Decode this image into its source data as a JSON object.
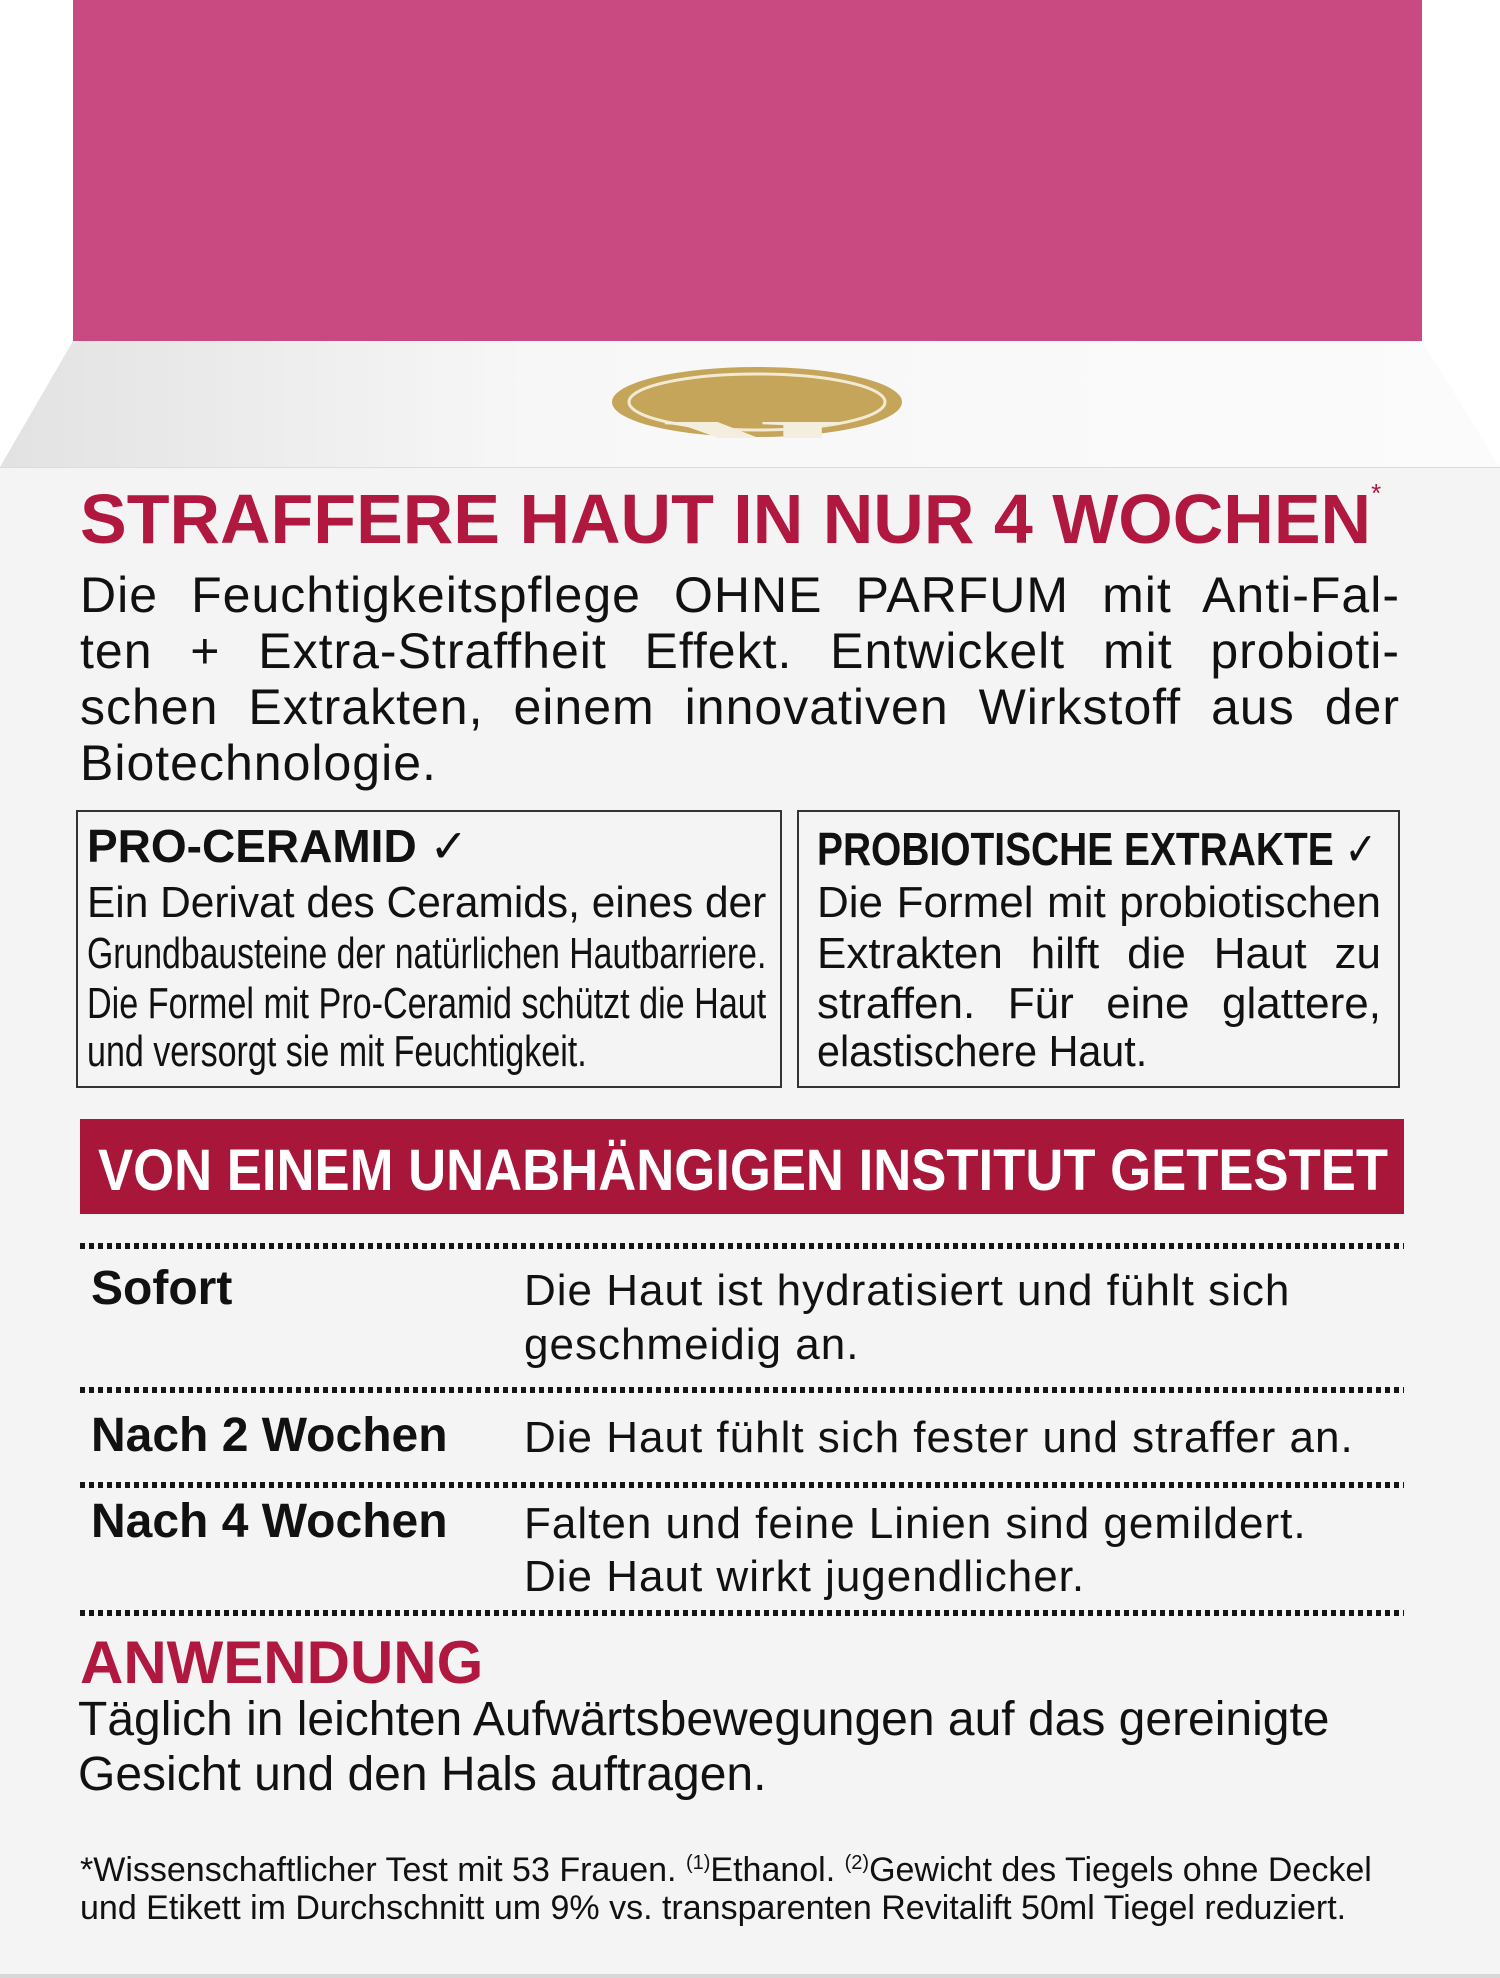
{
  "colors": {
    "top_band": "#c94a81",
    "accent_red": "#b0183f",
    "banner": "#a8173a",
    "logo_gold": "#c4a55a",
    "panel": "#f4f4f4"
  },
  "logo": {
    "letter": "R",
    "icon": "brand-seal-logo"
  },
  "headline": {
    "text": "STRAFFERE HAUT IN NUR 4 WOCHEN",
    "mark": "*"
  },
  "intro_lines": [
    "Die Feuchtigkeitspflege OHNE PARFUM mit Anti-Fal-",
    "ten + Extra-Straffheit Effekt. Entwickelt mit probioti-",
    "schen Extrakten, einem innovativen Wirkstoff aus der",
    "Biotechnologie."
  ],
  "features": [
    {
      "title": "PRO-CERAMID",
      "check": "✓",
      "lines": [
        "Ein Derivat des Ceramids, eines der",
        "Grundbausteine der natürlichen Hautbarriere.",
        "Die Formel mit Pro-Ceramid schützt die Haut",
        "und versorgt sie mit Feuchtigkeit."
      ]
    },
    {
      "title": "PROBIOTISCHE EXTRAKTE",
      "check": "✓",
      "lines": [
        "Die Formel mit probiotischen",
        "Extrakten hilft die Haut zu",
        "straffen. Für eine glattere,",
        "elastischere Haut."
      ]
    }
  ],
  "banner": "VON EINEM UNABHÄNGIGEN INSTITUT GETESTET",
  "results": [
    {
      "label": "Sofort",
      "lines": [
        "Die Haut ist hydratisiert und fühlt sich",
        "geschmeidig an."
      ]
    },
    {
      "label": "Nach 2 Wochen",
      "lines": [
        "Die Haut fühlt sich fester und straffer an."
      ]
    },
    {
      "label": "Nach 4 Wochen",
      "lines": [
        "Falten und feine Linien sind gemildert.",
        "Die Haut wirkt jugendlicher."
      ]
    }
  ],
  "usage": {
    "title": "ANWENDUNG",
    "lines": [
      "Täglich in leichten Aufwärtsbewegungen auf das gereinigte",
      "Gesicht und den Hals auftragen."
    ]
  },
  "footnote": {
    "l1a": "*Wissenschaftlicher Test mit 53 Frauen. ",
    "s1": "(1)",
    "l1b": "Ethanol. ",
    "s2": "(2)",
    "l1c": "Gewicht des Tiegels ohne Deckel",
    "l2": "und Etikett im Durchschnitt um 9% vs. transparenten Revitalift 50ml Tiegel reduziert."
  }
}
